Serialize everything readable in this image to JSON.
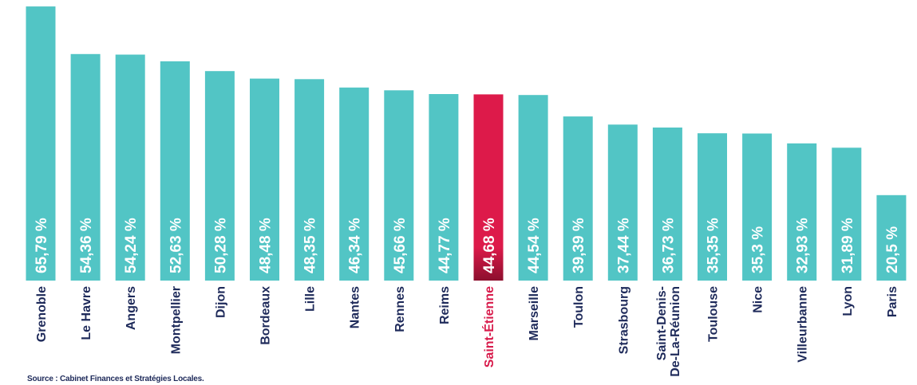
{
  "chart_data": {
    "type": "bar",
    "title": "",
    "xlabel": "",
    "ylabel": "",
    "ylim": [
      0,
      66
    ],
    "grid": false,
    "categories": [
      "Grenoble",
      "Le Havre",
      "Angers",
      "Montpellier",
      "Dijon",
      "Bordeaux",
      "Lille",
      "Nantes",
      "Rennes",
      "Reims",
      "Saint-Étienne",
      "Marseille",
      "Toulon",
      "Strasbourg",
      "Saint-Denis-De-La-Réunion",
      "Toulouse",
      "Nice",
      "Villeurbanne",
      "Lyon",
      "Paris"
    ],
    "category_lines": [
      [
        "Grenoble"
      ],
      [
        "Le Havre"
      ],
      [
        "Angers"
      ],
      [
        "Montpellier"
      ],
      [
        "Dijon"
      ],
      [
        "Bordeaux"
      ],
      [
        "Lille"
      ],
      [
        "Nantes"
      ],
      [
        "Rennes"
      ],
      [
        "Reims"
      ],
      [
        "Saint-Étienne"
      ],
      [
        "Marseille"
      ],
      [
        "Toulon"
      ],
      [
        "Strasbourg"
      ],
      [
        "Saint-Denis-",
        "De-La-Réunion"
      ],
      [
        "Toulouse"
      ],
      [
        "Nice"
      ],
      [
        "Villeurbanne"
      ],
      [
        "Lyon"
      ],
      [
        "Paris"
      ]
    ],
    "values": [
      65.79,
      54.36,
      54.24,
      52.63,
      50.28,
      48.48,
      48.35,
      46.34,
      45.66,
      44.77,
      44.68,
      44.54,
      39.39,
      37.44,
      36.73,
      35.35,
      35.3,
      32.93,
      31.89,
      20.5
    ],
    "data_labels": [
      "65,79 %",
      "54,36 %",
      "54,24 %",
      "52,63 %",
      "50,28 %",
      "48,48 %",
      "48,35 %",
      "46,34 %",
      "45,66 %",
      "44,77 %",
      "44,68 %",
      "44,54 %",
      "39,39 %",
      "37,44 %",
      "36,73 %",
      "35,35 %",
      "35,3 %",
      "32,93 %",
      "31,89 %",
      "20,5 %"
    ],
    "highlight_index": 10,
    "colors": {
      "bar": "#52c5c5",
      "highlight_top": "#dd1a4a",
      "highlight_bottom": "#8c0f2e",
      "highlight_label": "#d81b4b",
      "label": "#1e2a5a",
      "value_text": "#ffffff"
    }
  },
  "source": "Source : Cabinet Finances et Stratégies Locales."
}
